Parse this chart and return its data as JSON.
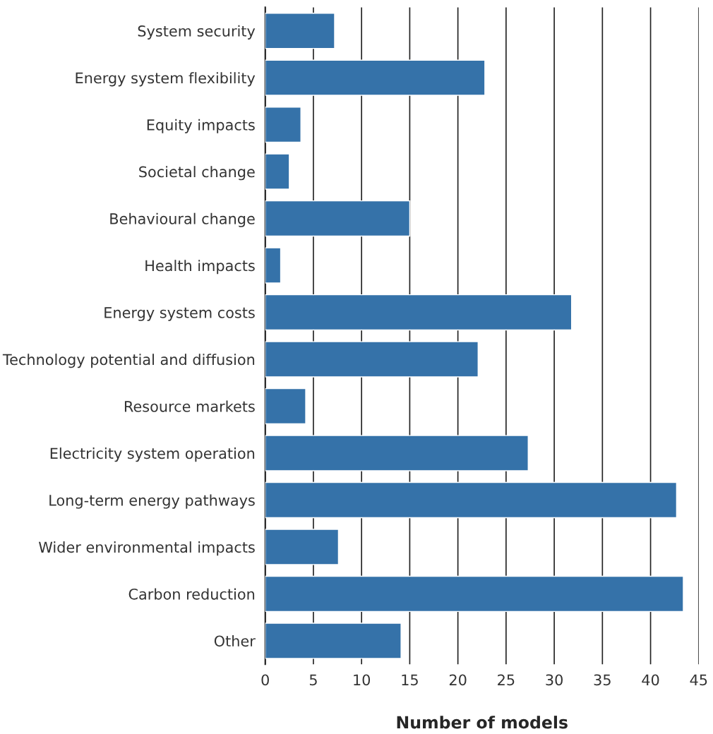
{
  "chart_data": {
    "type": "bar",
    "orientation": "horizontal",
    "xlabel": "Number of models",
    "categories": [
      "System security",
      "Energy system flexibility",
      "Equity impacts",
      "Societal change",
      "Behavioural change",
      "Health impacts",
      "Energy system costs",
      "Technology potential and diffusion",
      "Resource markets",
      "Electricity system operation",
      "Long-term energy pathways",
      "Wider environmental impacts",
      "Carbon reduction",
      "Other"
    ],
    "values": [
      7.2,
      22.8,
      3.7,
      2.5,
      15.0,
      1.6,
      31.8,
      22.1,
      4.2,
      27.3,
      42.7,
      7.6,
      43.4,
      14.1
    ],
    "color": "#3572a9",
    "xlim": [
      0,
      45
    ],
    "xticks": [
      0,
      5,
      10,
      15,
      20,
      25,
      30,
      35,
      40,
      45
    ],
    "grid": "x"
  }
}
